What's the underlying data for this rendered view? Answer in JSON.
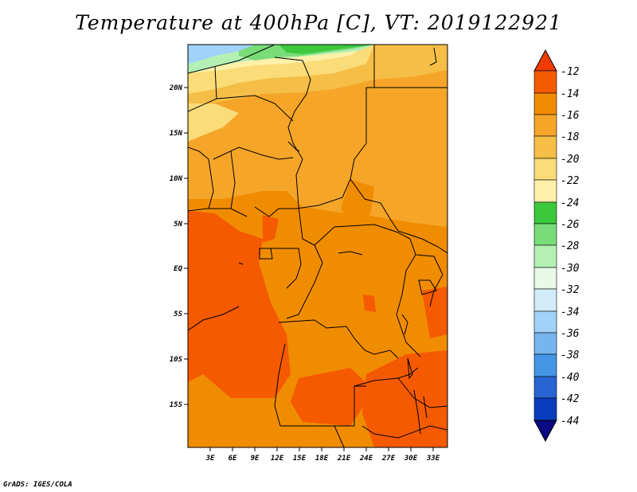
{
  "title": "Temperature at 400hPa [C], VT: 2019122921",
  "credit": "GrADS: IGES/COLA",
  "map": {
    "lon_labels": [
      "3E",
      "6E",
      "9E",
      "12E",
      "15E",
      "18E",
      "21E",
      "24E",
      "27E",
      "30E",
      "33E"
    ],
    "lat_labels": [
      "20N",
      "15N",
      "10N",
      "5N",
      "EQ",
      "5S",
      "10S",
      "15S"
    ],
    "field_colors": {
      "orange_red": "#f55a00",
      "orange": "#f08c00",
      "light_orange": "#f5a528",
      "yellow_orange": "#f5be46",
      "pale_yellow": "#fadc78",
      "cream": "#fff0aa",
      "green_dark": "#3cc83c",
      "green_mid": "#78dc78",
      "green_light": "#b4f0b4",
      "sky_blue": "#a0d2fa"
    }
  },
  "colorbar": {
    "labels": [
      "-12",
      "-14",
      "-16",
      "-18",
      "-20",
      "-22",
      "-24",
      "-26",
      "-28",
      "-30",
      "-32",
      "-34",
      "-36",
      "-38",
      "-40",
      "-42",
      "-44"
    ],
    "colors": [
      "#f03c00",
      "#f55a00",
      "#f08c00",
      "#f5a528",
      "#f5be46",
      "#fadc78",
      "#fff0aa",
      "#3cc83c",
      "#78dc78",
      "#b4f0b4",
      "#e6fae6",
      "#d2ebfa",
      "#a0d2fa",
      "#78b4f0",
      "#4696e6",
      "#2864d2",
      "#0a3cbe",
      "#0a0a82",
      "#dcdcfa"
    ]
  }
}
